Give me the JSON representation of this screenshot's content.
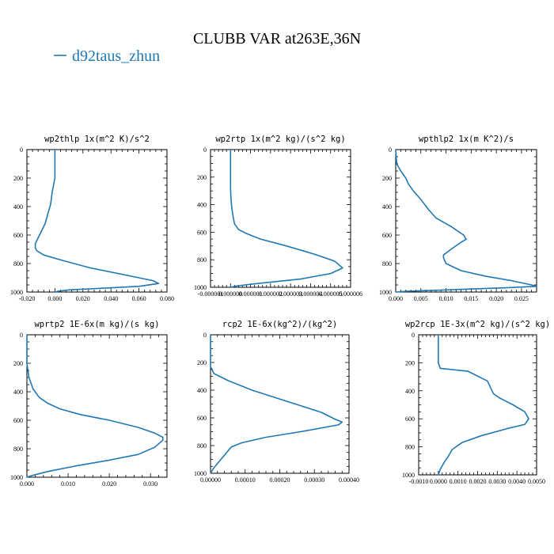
{
  "figure": {
    "title": "CLUBB VAR at263E,36N",
    "legend_label": "d92taus_zhun",
    "line_color": "#1f77b4"
  },
  "chart_data": [
    {
      "type": "line",
      "title": "wp2thlp  1x(m^2 K)/s^2",
      "xlim": [
        -0.02,
        0.08
      ],
      "ylim": [
        1000,
        0
      ],
      "xticks": [
        -0.02,
        0.0,
        0.02,
        0.04,
        0.06,
        0.08
      ],
      "xtick_labels": [
        "-0.020",
        "0.000",
        "0.020",
        "0.040",
        "0.060",
        "0.080"
      ],
      "yticks": [
        0,
        200,
        400,
        600,
        800,
        1000
      ],
      "ytick_labels": [
        "0",
        "200",
        "400",
        "600",
        "800",
        "1000"
      ],
      "series": [
        {
          "x": [
            0.0,
            0.0,
            0.0,
            -0.001,
            -0.002,
            -0.003,
            -0.005,
            -0.007,
            -0.01,
            -0.012,
            -0.014,
            -0.014,
            -0.013,
            -0.008,
            0.006,
            0.025,
            0.05,
            0.07,
            0.074,
            0.06,
            0.03,
            0.01,
            0.002,
            0.0
          ],
          "y": [
            0,
            100,
            200,
            250,
            300,
            380,
            450,
            520,
            580,
            620,
            660,
            690,
            710,
            740,
            780,
            830,
            880,
            920,
            940,
            960,
            975,
            985,
            995,
            1000
          ]
        }
      ]
    },
    {
      "type": "line",
      "title": "wp2rtp  1x(m^2 kg)/(s^2 kg)",
      "xlim": [
        -1e-06,
        6e-06
      ],
      "ylim": [
        1000,
        0
      ],
      "xticks": [
        -1e-06,
        0.0,
        1e-06,
        2e-06,
        3e-06,
        4e-06,
        5e-06,
        6e-06
      ],
      "xtick_labels": [
        "-0.000001",
        "0.000000",
        "0.000001",
        "0.000002",
        "0.000003",
        "0.000004",
        "0.000005",
        "0.000006"
      ],
      "yticks": [
        0,
        200,
        400,
        600,
        800,
        1000
      ],
      "ytick_labels": [
        "0",
        "200",
        "400",
        "600",
        "800",
        "1000"
      ],
      "series": [
        {
          "x": [
            0.0,
            0.0,
            0.0,
            2e-08,
            6e-08,
            1.2e-07,
            2e-07,
            4e-07,
            8e-07,
            1.5e-06,
            2.8e-06,
            4.2e-06,
            5.2e-06,
            5.6e-06,
            5e-06,
            3.5e-06,
            1.5e-06,
            3e-07,
            0.0
          ],
          "y": [
            0,
            150,
            280,
            350,
            420,
            480,
            540,
            580,
            610,
            650,
            700,
            760,
            810,
            860,
            900,
            940,
            970,
            990,
            1000
          ]
        }
      ]
    },
    {
      "type": "line",
      "title": "wpthlp2  1x(m K^2)/s",
      "xlim": [
        0.0,
        0.028
      ],
      "ylim": [
        1000,
        0
      ],
      "xticks": [
        0.0,
        0.005,
        0.01,
        0.015,
        0.02,
        0.025
      ],
      "xtick_labels": [
        "0.000",
        "0.005",
        "0.010",
        "0.015",
        "0.020",
        "0.025"
      ],
      "yticks": [
        0,
        200,
        400,
        600,
        800,
        1000
      ],
      "ytick_labels": [
        "0",
        "200",
        "400",
        "600",
        "800",
        "1000"
      ],
      "series": [
        {
          "x": [
            0.0,
            0.0002,
            0.001,
            0.002,
            0.0025,
            0.0035,
            0.005,
            0.0065,
            0.008,
            0.011,
            0.0135,
            0.014,
            0.013,
            0.011,
            0.0095,
            0.0095,
            0.01,
            0.013,
            0.018,
            0.023,
            0.027,
            0.028,
            0.022,
            0.01,
            0.002,
            0.0
          ],
          "y": [
            0,
            100,
            150,
            200,
            240,
            290,
            350,
            420,
            480,
            540,
            600,
            630,
            650,
            700,
            740,
            760,
            800,
            850,
            890,
            920,
            950,
            960,
            970,
            985,
            995,
            1000
          ]
        }
      ]
    },
    {
      "type": "line",
      "title": "wprtp2  1E-6x(m kg)/(s kg)",
      "xlim": [
        0.0,
        0.034
      ],
      "ylim": [
        1000,
        0
      ],
      "xticks": [
        0.0,
        0.01,
        0.02,
        0.03
      ],
      "xtick_labels": [
        "0.000",
        "0.010",
        "0.020",
        "0.030"
      ],
      "yticks": [
        0,
        200,
        400,
        600,
        800,
        1000
      ],
      "ytick_labels": [
        "0",
        "200",
        "400",
        "600",
        "800",
        "1000"
      ],
      "series": [
        {
          "x": [
            0.0,
            0.0,
            0.0005,
            0.0015,
            0.003,
            0.005,
            0.008,
            0.013,
            0.02,
            0.027,
            0.031,
            0.033,
            0.033,
            0.031,
            0.027,
            0.02,
            0.012,
            0.005,
            0.001,
            0.0
          ],
          "y": [
            0,
            200,
            300,
            380,
            440,
            480,
            520,
            560,
            600,
            650,
            690,
            720,
            740,
            790,
            840,
            880,
            920,
            960,
            990,
            1000
          ]
        }
      ]
    },
    {
      "type": "line",
      "title": "rcp2  1E-6x(kg^2)/(kg^2)",
      "xlim": [
        0.0,
        0.0004
      ],
      "ylim": [
        1000,
        0
      ],
      "xticks": [
        0.0,
        0.0001,
        0.0002,
        0.0003,
        0.0004
      ],
      "xtick_labels": [
        "0.00000",
        "0.00010",
        "0.00020",
        "0.00030",
        "0.00040"
      ],
      "yticks": [
        0,
        200,
        400,
        600,
        800,
        1000
      ],
      "ytick_labels": [
        "0",
        "200",
        "400",
        "600",
        "800",
        "1000"
      ],
      "series": [
        {
          "x": [
            0.0,
            0.0,
            1e-05,
            5e-05,
            0.00012,
            0.00022,
            0.00032,
            0.00036,
            0.00038,
            0.00037,
            0.00026,
            0.00016,
            9e-05,
            6e-05,
            5e-05,
            4e-05,
            3e-05,
            2e-05,
            1e-05,
            0.0
          ],
          "y": [
            0,
            230,
            280,
            330,
            400,
            480,
            560,
            610,
            630,
            650,
            700,
            740,
            780,
            810,
            840,
            870,
            900,
            930,
            960,
            1000
          ]
        }
      ]
    },
    {
      "type": "line",
      "title": "wp2rcp  1E-3x(m^2 kg)/(s^2 kg)",
      "xlim": [
        -0.001,
        0.005
      ],
      "ylim": [
        1000,
        0
      ],
      "xticks": [
        -0.001,
        0.0,
        0.001,
        0.002,
        0.003,
        0.004,
        0.005
      ],
      "xtick_labels": [
        "-0.0010",
        "0.0000",
        "0.0010",
        "0.0020",
        "0.0030",
        "0.0040",
        "0.0050"
      ],
      "yticks": [
        0,
        200,
        400,
        600,
        800,
        1000
      ],
      "ytick_labels": [
        "0",
        "200",
        "400",
        "600",
        "800",
        "1000"
      ],
      "series": [
        {
          "x": [
            0.0,
            0.0,
            0.0,
            0.0001,
            0.0015,
            0.0025,
            0.0028,
            0.0031,
            0.0038,
            0.0044,
            0.0046,
            0.0044,
            0.0035,
            0.0022,
            0.0012,
            0.0007,
            0.0005,
            0.0003,
            0.0001,
            0.0
          ],
          "y": [
            0,
            150,
            200,
            240,
            260,
            330,
            420,
            450,
            500,
            550,
            600,
            640,
            670,
            720,
            770,
            820,
            870,
            910,
            960,
            1000
          ]
        }
      ]
    }
  ]
}
